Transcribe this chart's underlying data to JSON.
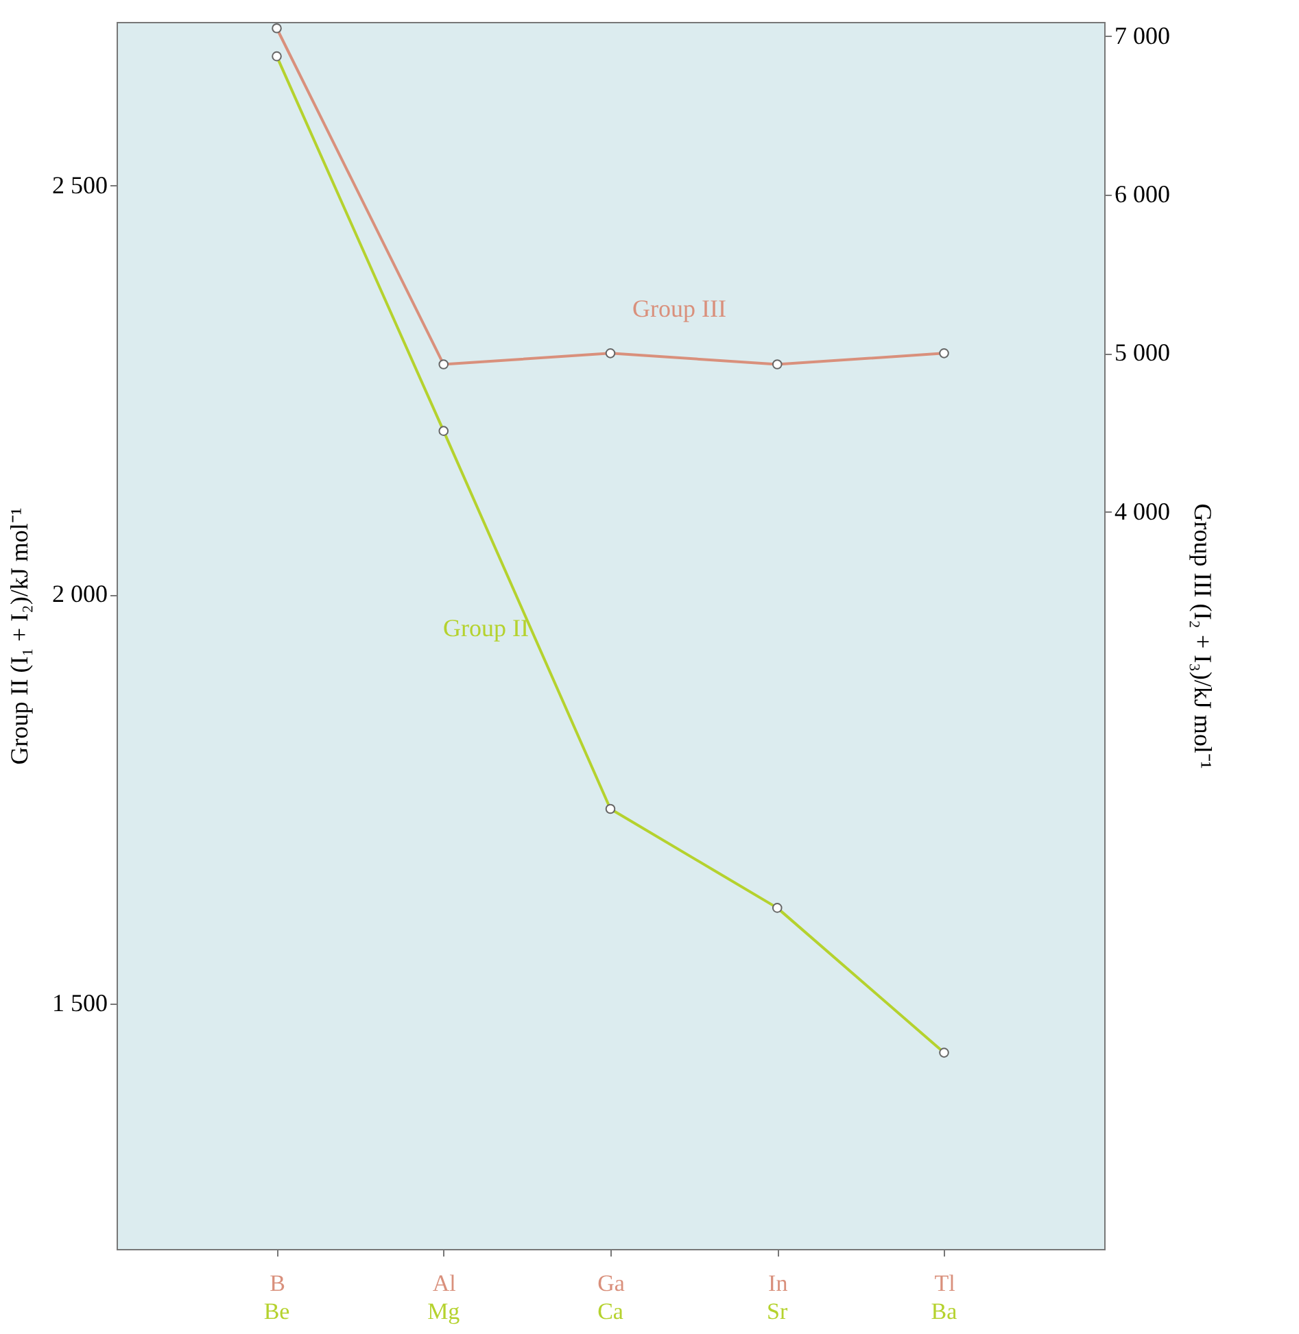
{
  "chart_data": {
    "type": "line",
    "ylabel": "Group II (I₁ + I₂)/kJ mol⁻¹",
    "y2label": "Group III (I₂ + I₃)/kJ mol⁻¹",
    "categories": [
      "B",
      "Al",
      "Ga",
      "In",
      "Tl"
    ],
    "series": [
      {
        "name": "Group II",
        "color": "#b5d22e",
        "values": [
          2658,
          2200,
          1738,
          1617,
          1440
        ]
      },
      {
        "name": "Group III",
        "color": "#d9907c",
        "axis": "y2",
        "values": [
          7050,
          4930,
          5000,
          4930,
          5000
        ]
      }
    ],
    "ylim": [
      1200,
      2700
    ],
    "yticks": [
      {
        "value": 1500,
        "label": "1 500"
      },
      {
        "value": 2000,
        "label": "2 000"
      },
      {
        "value": 2500,
        "label": "2 500"
      }
    ],
    "y2lim": [
      -650,
      7090
    ],
    "y2ticks": [
      {
        "value": 4000,
        "label": "4 000"
      },
      {
        "value": 5000,
        "label": "5 000"
      },
      {
        "value": 6000,
        "label": "6 000"
      },
      {
        "value": 7000,
        "label": "7 000"
      }
    ],
    "annotations": [
      "Be",
      "Mg",
      "Ca",
      "Sr",
      "Ba"
    ],
    "marker": "circle",
    "grid": false
  }
}
